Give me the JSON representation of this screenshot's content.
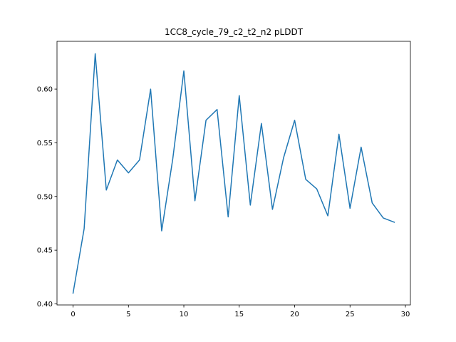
{
  "chart_data": {
    "type": "line",
    "title": "1CC8_cycle_79_c2_t2_n2 pLDDT",
    "xlabel": "",
    "ylabel": "",
    "xlim": [
      -1.45,
      30.45
    ],
    "ylim": [
      0.399,
      0.6445
    ],
    "x_ticks": [
      0,
      5,
      10,
      15,
      20,
      25,
      30
    ],
    "y_ticks": [
      0.4,
      0.45,
      0.5,
      0.55,
      0.6
    ],
    "x_tick_labels": [
      "0",
      "5",
      "10",
      "15",
      "20",
      "25",
      "30"
    ],
    "y_tick_labels": [
      "0.40",
      "0.45",
      "0.50",
      "0.55",
      "0.60"
    ],
    "grid": false,
    "line_color": "#1f77b4",
    "series": [
      {
        "x": [
          0,
          1,
          2,
          3,
          4,
          5,
          6,
          7,
          8,
          9,
          10,
          11,
          12,
          13,
          14,
          15,
          16,
          17,
          18,
          19,
          20,
          21,
          22,
          23,
          24,
          25,
          26,
          27,
          28,
          29
        ],
        "values": [
          0.41,
          0.47,
          0.633,
          0.506,
          0.534,
          0.522,
          0.534,
          0.6,
          0.468,
          0.535,
          0.617,
          0.496,
          0.571,
          0.581,
          0.481,
          0.594,
          0.492,
          0.568,
          0.488,
          0.536,
          0.571,
          0.516,
          0.507,
          0.482,
          0.558,
          0.489,
          0.546,
          0.494,
          0.48,
          0.476
        ]
      }
    ]
  }
}
